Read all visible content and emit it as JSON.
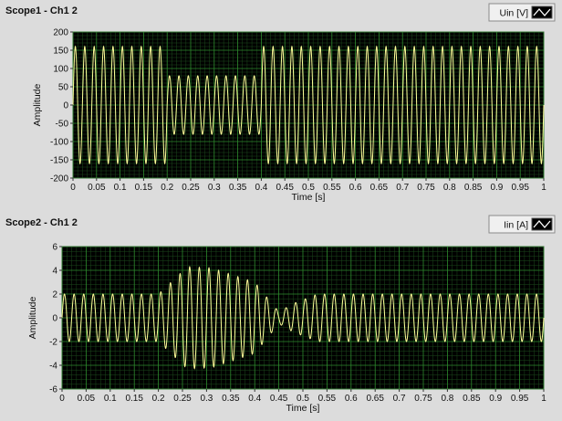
{
  "chart_data": [
    {
      "type": "line",
      "title": "Scope1 - Ch1 2",
      "xlabel": "Time [s]",
      "ylabel": "Amplitude",
      "xlim": [
        0,
        1
      ],
      "ylim": [
        -200,
        200
      ],
      "xticks": [
        "0",
        "0.05",
        "0.1",
        "0.15",
        "0.2",
        "0.25",
        "0.3",
        "0.35",
        "0.4",
        "0.45",
        "0.5",
        "0.55",
        "0.6",
        "0.65",
        "0.7",
        "0.75",
        "0.8",
        "0.85",
        "0.9",
        "0.95",
        "1"
      ],
      "yticks": [
        "200",
        "150",
        "100",
        "50",
        "0",
        "-50",
        "-100",
        "-150",
        "-200"
      ],
      "grid": true,
      "legend_position": "top-right",
      "colors": {
        "background": "#000000",
        "grid": "#2e8b2e",
        "trace": "#ffff9a"
      },
      "series": [
        {
          "name": "Uin [V]",
          "frequency_hz": 50,
          "envelope": [
            {
              "t_start": 0,
              "t_end": 0.2,
              "amplitude": 160
            },
            {
              "t_start": 0.2,
              "t_end": 0.4,
              "amplitude": 80
            },
            {
              "t_start": 0.4,
              "t_end": 1.0,
              "amplitude": 160
            }
          ]
        }
      ]
    },
    {
      "type": "line",
      "title": "Scope2 - Ch1  2",
      "xlabel": "Time [s]",
      "ylabel": "Amplitude",
      "xlim": [
        0,
        1
      ],
      "ylim": [
        -6,
        6
      ],
      "xticks": [
        "0",
        "0.05",
        "0.1",
        "0.15",
        "0.2",
        "0.25",
        "0.3",
        "0.35",
        "0.4",
        "0.45",
        "0.5",
        "0.55",
        "0.6",
        "0.65",
        "0.7",
        "0.75",
        "0.8",
        "0.85",
        "0.9",
        "0.95",
        "1"
      ],
      "yticks": [
        "6",
        "4",
        "2",
        "0",
        "-2",
        "-4",
        "-6"
      ],
      "grid": true,
      "legend_position": "top-right",
      "colors": {
        "background": "#000000",
        "grid": "#2e8b2e",
        "trace": "#ffff9a"
      },
      "series": [
        {
          "name": "Iin [A]",
          "frequency_hz": 50,
          "envelope": [
            {
              "t": 0,
              "amplitude": 2
            },
            {
              "t": 0.2,
              "amplitude": 2
            },
            {
              "t": 0.26,
              "amplitude": 4.3
            },
            {
              "t": 0.31,
              "amplitude": 4.2
            },
            {
              "t": 0.4,
              "amplitude": 3.0
            },
            {
              "t": 0.43,
              "amplitude": 1.5
            },
            {
              "t": 0.45,
              "amplitude": 0.5
            },
            {
              "t": 0.48,
              "amplitude": 1.2
            },
            {
              "t": 0.53,
              "amplitude": 2
            },
            {
              "t": 1,
              "amplitude": 2
            }
          ]
        }
      ]
    }
  ]
}
